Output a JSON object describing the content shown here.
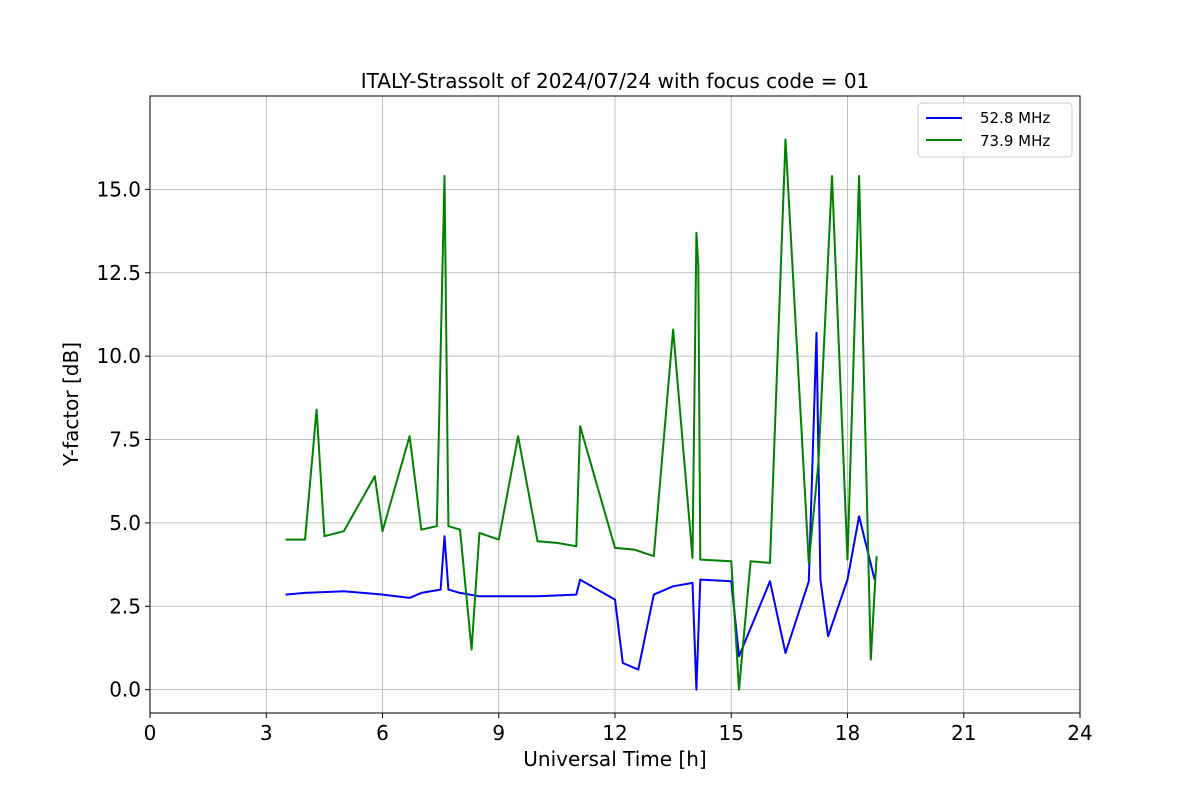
{
  "chart_data": {
    "type": "line",
    "title": "ITALY-Strassolt of 2024/07/24 with focus code = 01",
    "xlabel": "Universal Time [h]",
    "ylabel": "Y-factor [dB]",
    "xlim": [
      0,
      24
    ],
    "ylim": [
      -0.7,
      17.8
    ],
    "xticks": [
      0,
      3,
      6,
      9,
      12,
      15,
      18,
      21,
      24
    ],
    "xtick_labels": [
      "0",
      "3",
      "6",
      "9",
      "12",
      "15",
      "18",
      "21",
      "24"
    ],
    "yticks": [
      0,
      2.5,
      5,
      7.5,
      10,
      12.5,
      15
    ],
    "ytick_labels": [
      "0.0",
      "2.5",
      "5.0",
      "7.5",
      "10.0",
      "12.5",
      "15.0"
    ],
    "grid": true,
    "legend_position": "top-right",
    "series": [
      {
        "name": "52.8 MHz",
        "color": "#0000ff",
        "x": [
          3.5,
          4.0,
          5.0,
          6.0,
          6.7,
          7.0,
          7.5,
          7.6,
          7.7,
          8.0,
          8.5,
          9.0,
          9.5,
          10.0,
          11.0,
          11.1,
          12.0,
          12.2,
          12.6,
          13.0,
          13.5,
          14.0,
          14.1,
          14.2,
          15.0,
          15.2,
          16.0,
          16.4,
          17.0,
          17.2,
          17.3,
          17.5,
          18.0,
          18.3,
          18.7
        ],
        "y": [
          2.85,
          2.9,
          2.95,
          2.85,
          2.75,
          2.9,
          3.0,
          4.6,
          3.0,
          2.9,
          2.8,
          2.8,
          2.8,
          2.8,
          2.85,
          3.3,
          2.7,
          0.8,
          0.6,
          2.85,
          3.1,
          3.2,
          0.0,
          3.3,
          3.25,
          1.0,
          3.25,
          1.1,
          3.25,
          10.7,
          3.3,
          1.6,
          3.3,
          5.2,
          3.3
        ]
      },
      {
        "name": "73.9 MHz",
        "color": "#008000",
        "x": [
          3.5,
          4.0,
          4.3,
          4.5,
          5.0,
          5.8,
          6.0,
          6.7,
          7.0,
          7.4,
          7.6,
          7.7,
          8.0,
          8.3,
          8.5,
          9.0,
          9.5,
          10.0,
          10.5,
          11.0,
          11.1,
          12.0,
          12.5,
          13.0,
          13.5,
          14.0,
          14.1,
          14.15,
          14.2,
          15.0,
          15.2,
          15.5,
          16.0,
          16.4,
          17.0,
          17.25,
          17.6,
          18.0,
          18.3,
          18.6,
          18.75
        ],
        "y": [
          4.5,
          4.5,
          8.4,
          4.6,
          4.75,
          6.4,
          4.75,
          7.6,
          4.8,
          4.9,
          15.4,
          4.9,
          4.8,
          1.2,
          4.7,
          4.5,
          7.6,
          4.45,
          4.4,
          4.3,
          7.9,
          4.25,
          4.2,
          4.0,
          10.8,
          3.95,
          13.7,
          12.7,
          3.9,
          3.85,
          0.0,
          3.85,
          3.8,
          16.5,
          3.8,
          6.8,
          15.4,
          3.9,
          15.4,
          0.9,
          4.0
        ]
      }
    ]
  }
}
